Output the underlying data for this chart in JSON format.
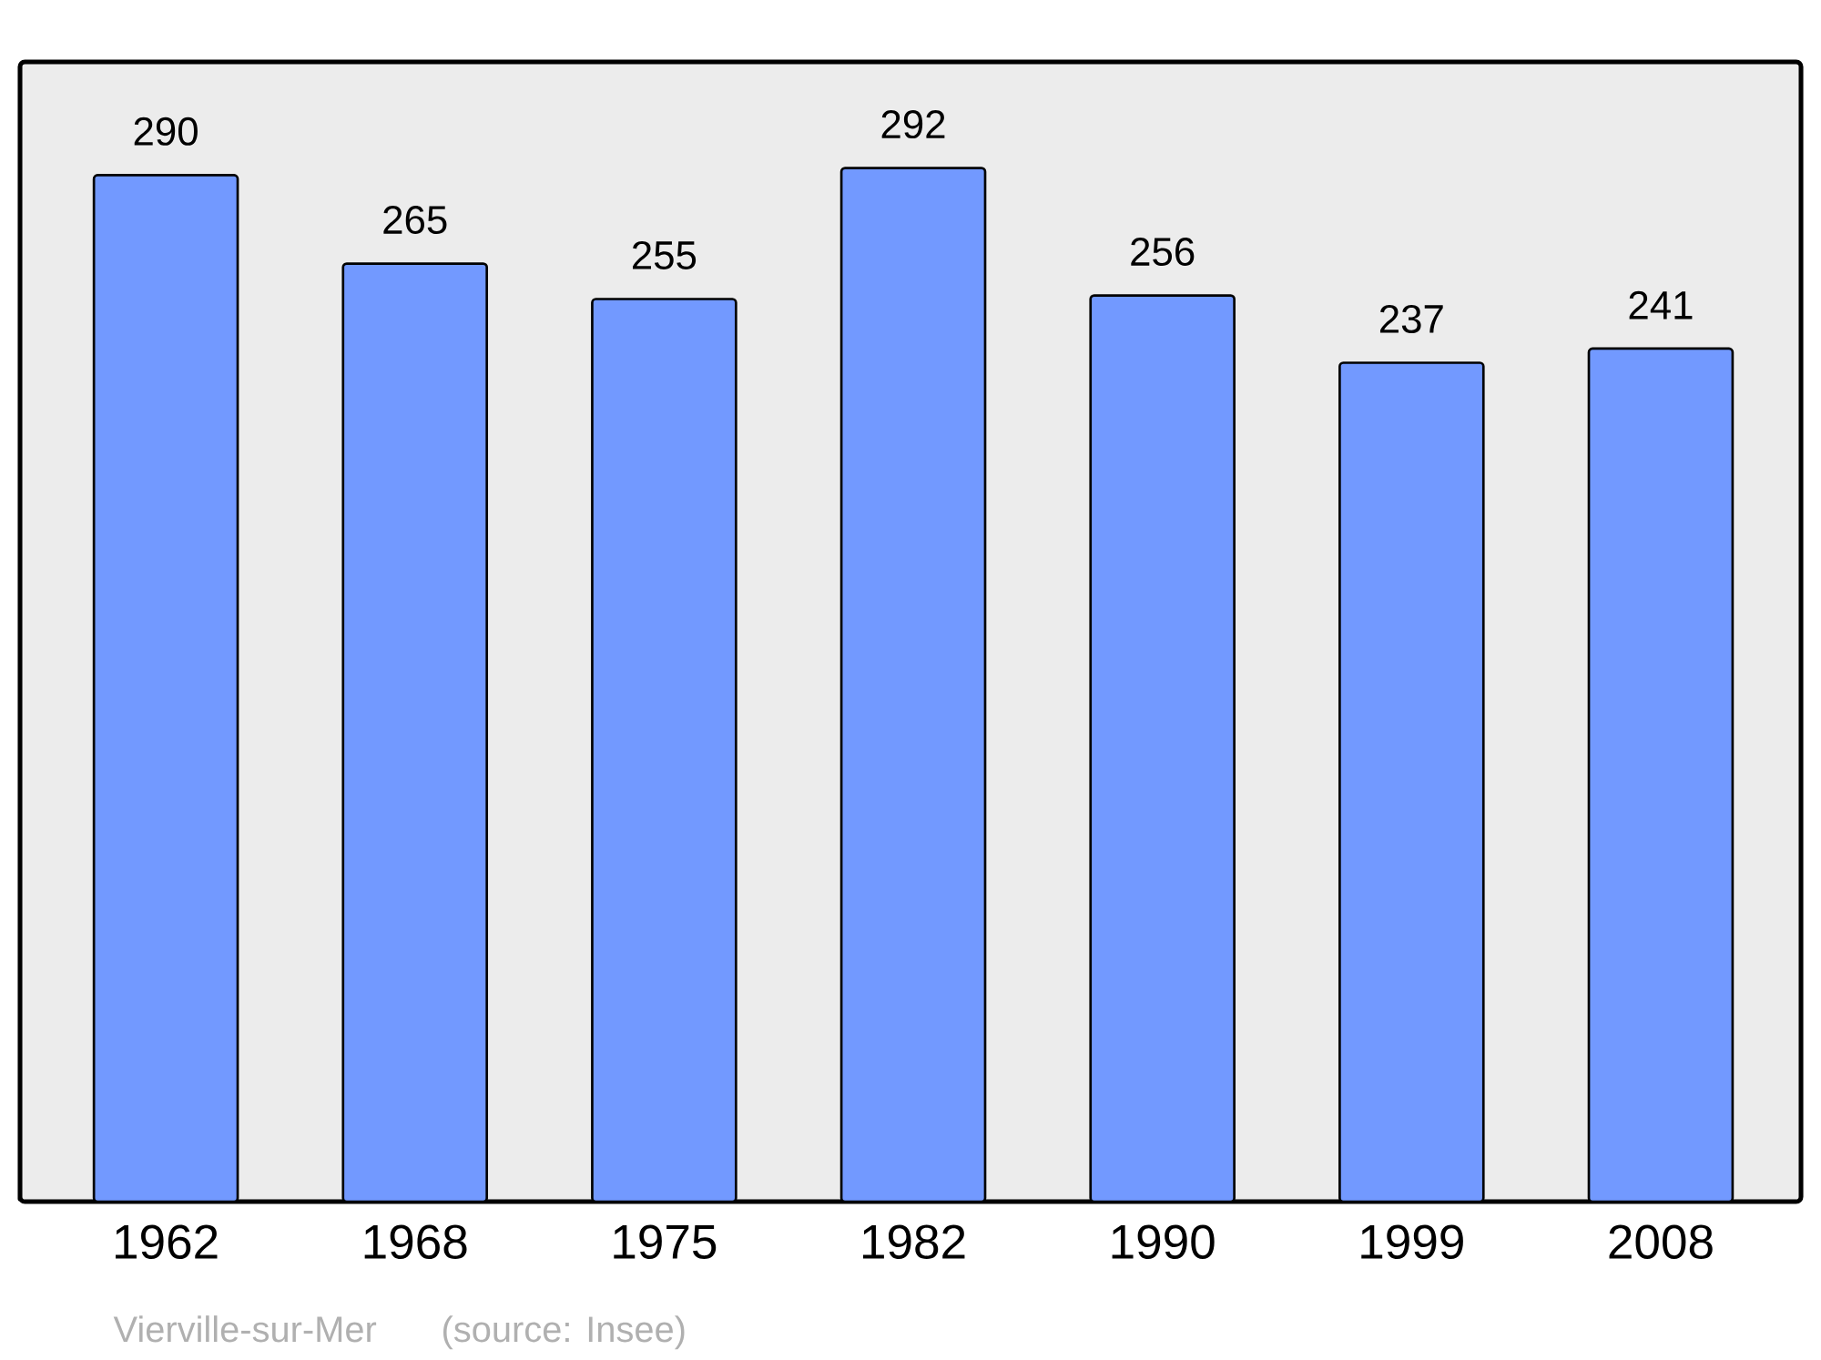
{
  "chart_data": {
    "type": "bar",
    "categories": [
      "1962",
      "1968",
      "1975",
      "1982",
      "1990",
      "1999",
      "2008"
    ],
    "values": [
      290,
      265,
      255,
      292,
      256,
      237,
      241
    ],
    "color": "#7299ff",
    "ylim": [
      0,
      322
    ],
    "data_labels": true,
    "annotations": [
      "Vierville-sur-Mer",
      "(source: Insee)"
    ]
  }
}
